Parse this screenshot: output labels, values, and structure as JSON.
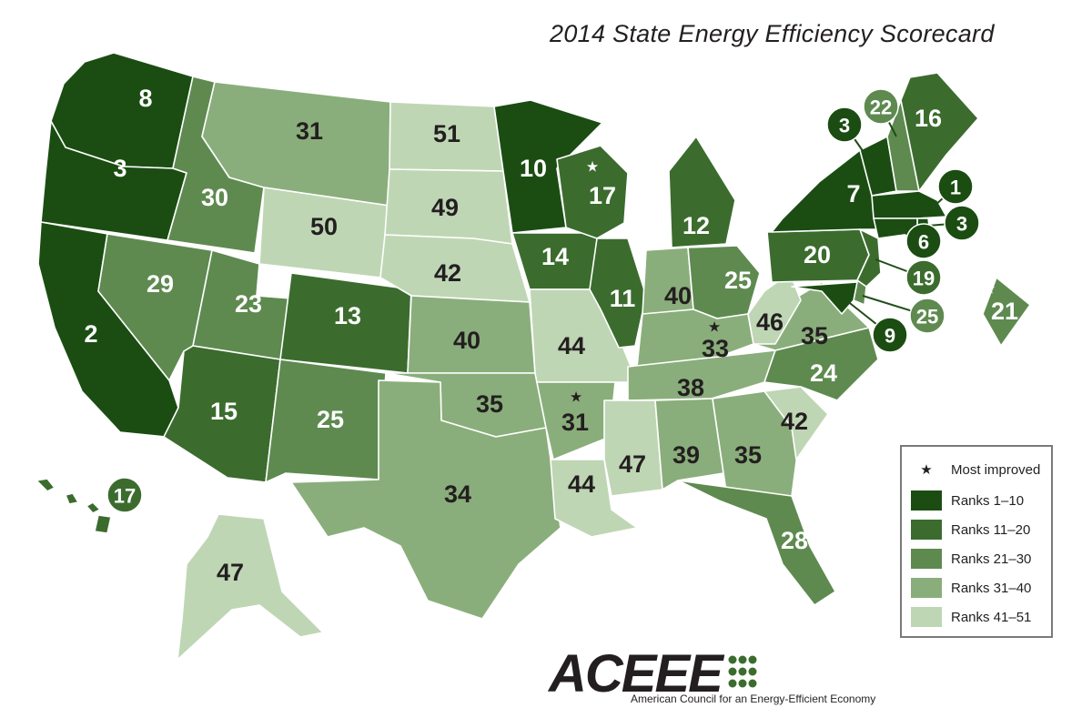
{
  "title": "2014 State Energy Efficiency Scorecard",
  "colors": {
    "r1": "#1b4d13",
    "r2": "#3b6c2e",
    "r3": "#5e8a50",
    "r4": "#8aae7b",
    "r5": "#bfd6b4",
    "text_dark": "#231f20",
    "text_light": "#ffffff"
  },
  "legend": {
    "most_improved": "Most improved",
    "items": [
      {
        "label": "Ranks 1–10",
        "color": "#1b4d13"
      },
      {
        "label": "Ranks 11–20",
        "color": "#3b6c2e"
      },
      {
        "label": "Ranks 21–30",
        "color": "#5e8a50"
      },
      {
        "label": "Ranks 31–40",
        "color": "#8aae7b"
      },
      {
        "label": "Ranks 41–51",
        "color": "#bfd6b4"
      }
    ]
  },
  "states": {
    "WA": {
      "rank": "8",
      "tier": 1
    },
    "OR": {
      "rank": "3",
      "tier": 1
    },
    "CA": {
      "rank": "2",
      "tier": 1
    },
    "ID": {
      "rank": "30",
      "tier": 3
    },
    "NV": {
      "rank": "29",
      "tier": 3
    },
    "MT": {
      "rank": "31",
      "tier": 4
    },
    "WY": {
      "rank": "50",
      "tier": 5
    },
    "UT": {
      "rank": "23",
      "tier": 3
    },
    "AZ": {
      "rank": "15",
      "tier": 2
    },
    "CO": {
      "rank": "13",
      "tier": 2
    },
    "NM": {
      "rank": "25",
      "tier": 3
    },
    "ND": {
      "rank": "51",
      "tier": 5
    },
    "SD": {
      "rank": "49",
      "tier": 5
    },
    "NE": {
      "rank": "42",
      "tier": 5
    },
    "KS": {
      "rank": "40",
      "tier": 4
    },
    "OK": {
      "rank": "35",
      "tier": 4
    },
    "TX": {
      "rank": "34",
      "tier": 4
    },
    "MN": {
      "rank": "10",
      "tier": 1
    },
    "IA": {
      "rank": "14",
      "tier": 2
    },
    "MO": {
      "rank": "44",
      "tier": 5
    },
    "AR": {
      "rank": "31",
      "tier": 4,
      "most_improved": true
    },
    "LA": {
      "rank": "44",
      "tier": 5
    },
    "WI": {
      "rank": "17",
      "tier": 2,
      "most_improved": true
    },
    "IL": {
      "rank": "11",
      "tier": 2
    },
    "MI": {
      "rank": "12",
      "tier": 2
    },
    "IN": {
      "rank": "40",
      "tier": 4
    },
    "OH": {
      "rank": "25",
      "tier": 3
    },
    "KY": {
      "rank": "33",
      "tier": 4,
      "most_improved": true
    },
    "TN": {
      "rank": "38",
      "tier": 4
    },
    "MS": {
      "rank": "47",
      "tier": 5
    },
    "AL": {
      "rank": "39",
      "tier": 4
    },
    "GA": {
      "rank": "35",
      "tier": 4
    },
    "FL": {
      "rank": "28",
      "tier": 3
    },
    "SC": {
      "rank": "42",
      "tier": 5
    },
    "NC": {
      "rank": "24",
      "tier": 3
    },
    "VA": {
      "rank": "35",
      "tier": 4
    },
    "WV": {
      "rank": "46",
      "tier": 5
    },
    "PA": {
      "rank": "20",
      "tier": 2
    },
    "NY": {
      "rank": "7",
      "tier": 1
    },
    "VT": {
      "rank": "3",
      "tier": 1
    },
    "NH": {
      "rank": "22",
      "tier": 3
    },
    "ME": {
      "rank": "16",
      "tier": 2
    },
    "MA": {
      "rank": "1",
      "tier": 1
    },
    "RI": {
      "rank": "3",
      "tier": 1
    },
    "CT": {
      "rank": "6",
      "tier": 1
    },
    "NJ": {
      "rank": "19",
      "tier": 2
    },
    "DE": {
      "rank": "25",
      "tier": 3
    },
    "MD": {
      "rank": "9",
      "tier": 1
    },
    "DC": {
      "rank": "21",
      "tier": 3,
      "most_improved": true
    },
    "AK": {
      "rank": "47",
      "tier": 5
    },
    "HI": {
      "rank": "17",
      "tier": 2
    }
  },
  "logo": {
    "name": "ACEEE",
    "tagline": "American Council for an Energy-Efficient Economy"
  }
}
